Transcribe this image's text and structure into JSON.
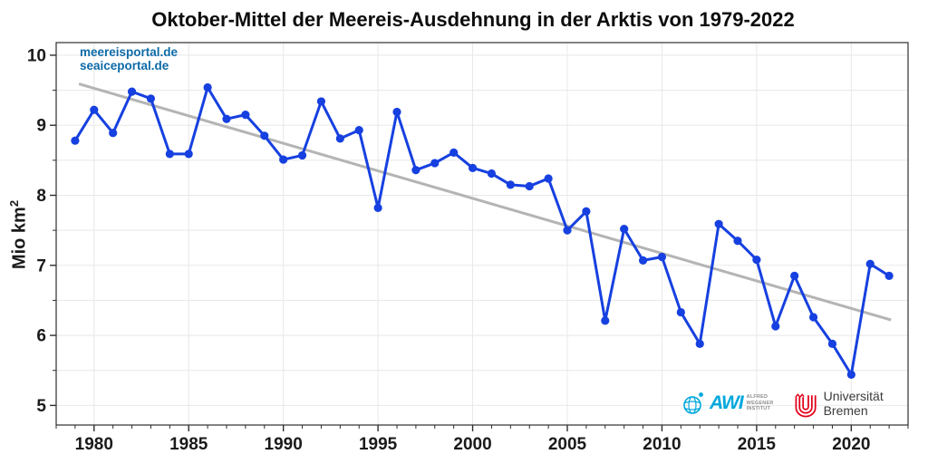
{
  "title": "Oktober-Mittel der Meereis-Ausdehnung in der Arktis von 1979-2022",
  "watermark": {
    "line1": "meereisportal.de",
    "line2": "seaiceportal.de",
    "color": "#0d6aa8"
  },
  "y_axis": {
    "label": "Mio km",
    "exponent": "2"
  },
  "logos": {
    "awi": {
      "name": "AWI",
      "lines": [
        "ALFRED",
        "WEGENER",
        "INSTITUT"
      ],
      "color": "#00a8dc",
      "text_color": "#8f8f8f"
    },
    "bremen": {
      "text": "Universität Bremen",
      "mark_color": "#e2001a",
      "text_color": "#3b3b3a"
    }
  },
  "chart_data": {
    "type": "line",
    "title": "Oktober-Mittel der Meereis-Ausdehnung in der Arktis von 1979-2022",
    "xlabel": "",
    "ylabel": "Mio km²",
    "x": [
      1979,
      1980,
      1981,
      1982,
      1983,
      1984,
      1985,
      1986,
      1987,
      1988,
      1989,
      1990,
      1991,
      1992,
      1993,
      1994,
      1995,
      1996,
      1997,
      1998,
      1999,
      2000,
      2001,
      2002,
      2003,
      2004,
      2005,
      2006,
      2007,
      2008,
      2009,
      2010,
      2011,
      2012,
      2013,
      2014,
      2015,
      2016,
      2017,
      2018,
      2019,
      2020,
      2021,
      2022
    ],
    "values": [
      8.78,
      9.22,
      8.89,
      9.48,
      9.38,
      8.59,
      8.59,
      9.54,
      9.09,
      9.15,
      8.85,
      8.51,
      8.57,
      9.34,
      8.81,
      8.93,
      7.82,
      9.19,
      8.36,
      8.46,
      8.61,
      8.39,
      8.31,
      8.15,
      8.13,
      8.24,
      7.5,
      7.77,
      6.21,
      7.52,
      7.07,
      7.12,
      6.33,
      5.88,
      7.59,
      7.35,
      7.08,
      6.13,
      6.85,
      6.26,
      5.88,
      5.44,
      7.02,
      6.85
    ],
    "trend": {
      "x": [
        1979.2,
        2022.1
      ],
      "y": [
        9.59,
        6.22
      ],
      "color": "#b4b4b4"
    },
    "xlim": [
      1978,
      2023
    ],
    "ylim": [
      4.72,
      10.18
    ],
    "x_major_ticks": [
      1980,
      1985,
      1990,
      1995,
      2000,
      2005,
      2010,
      2015,
      2020
    ],
    "y_major_ticks": [
      5,
      6,
      7,
      8,
      9,
      10
    ],
    "y_minor_step": 0.5,
    "x_minor_step": 1,
    "grid": {
      "color": "#e8e8e8",
      "y_from": 5,
      "y_to": 10,
      "y_step": 0.5
    },
    "legend": "none",
    "line_color": "#1640e0",
    "marker": "circle",
    "axis_color": "#2e2e2e"
  }
}
